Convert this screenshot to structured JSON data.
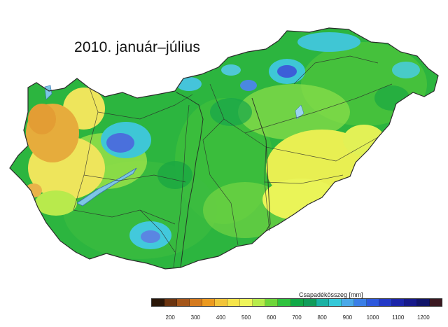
{
  "title": "2010. január–július",
  "legend": {
    "title": "Csapadékösszeg [mm]",
    "ticks": [
      "200",
      "300",
      "400",
      "500",
      "600",
      "700",
      "800",
      "900",
      "1000",
      "1100",
      "1200"
    ],
    "colors": [
      "#2a1608",
      "#6b3410",
      "#a4561a",
      "#d47a1e",
      "#ec9a20",
      "#f2c43a",
      "#f6e44a",
      "#eef55a",
      "#b7ec4c",
      "#6ed63a",
      "#2ec23e",
      "#10a846",
      "#109c5a",
      "#1ab2a4",
      "#35c8d8",
      "#4aa8e8",
      "#3a7ee6",
      "#2d58dc",
      "#2338c6",
      "#1b24a8",
      "#16198a",
      "#101468",
      "#3a1820"
    ]
  },
  "map_colors": {
    "wet_green": "#22b33e",
    "mid_green": "#5fcf3e",
    "light_green": "#a4e84a",
    "yellow": "#eef35a",
    "orange": "#e9a83a",
    "cyan": "#3cc8d8",
    "blue": "#3f63d8",
    "lake": "#7dc6e6",
    "border": "#2b2b2b"
  }
}
